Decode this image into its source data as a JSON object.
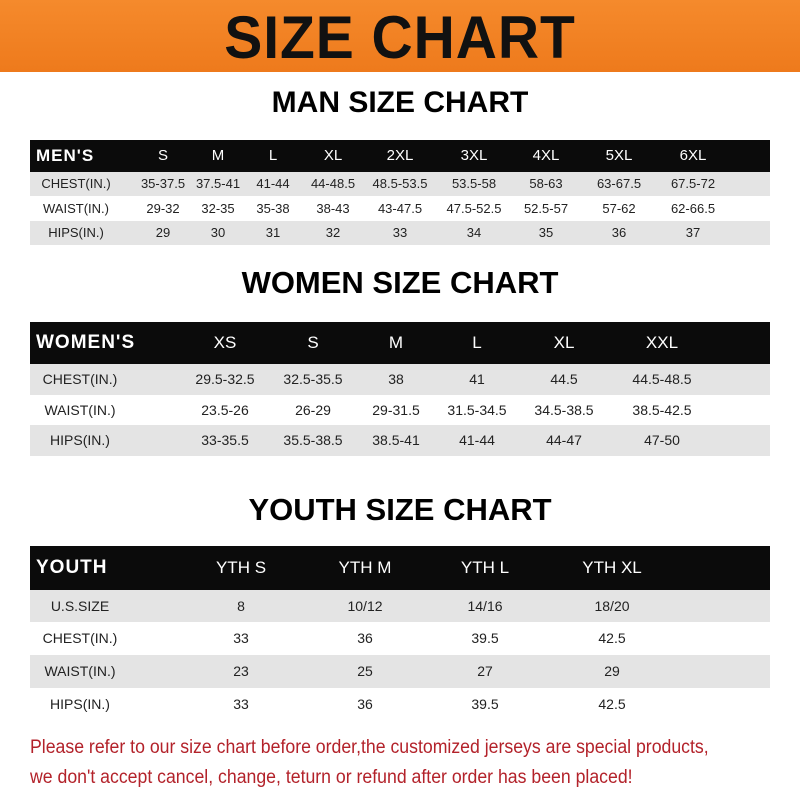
{
  "title": "SIZE CHART",
  "colors": {
    "banner": "#f0801f",
    "header_row": "#0b0b0b",
    "stripe": "#e4e4e4",
    "notice": "#b3222a"
  },
  "men": {
    "title": "MAN SIZE CHART",
    "header": [
      "MEN'S",
      "S",
      "M",
      "L",
      "XL",
      "2XL",
      "3XL",
      "4XL",
      "5XL",
      "6XL"
    ],
    "rows": [
      [
        "CHEST(IN.)",
        "35-37.5",
        "37.5-41",
        "41-44",
        "44-48.5",
        "48.5-53.5",
        "53.5-58",
        "58-63",
        "63-67.5",
        "67.5-72"
      ],
      [
        "WAIST(IN.)",
        "29-32",
        "32-35",
        "35-38",
        "38-43",
        "43-47.5",
        "47.5-52.5",
        "52.5-57",
        "57-62",
        "62-66.5"
      ],
      [
        "HIPS(IN.)",
        "29",
        "30",
        "31",
        "32",
        "33",
        "34",
        "35",
        "36",
        "37"
      ]
    ]
  },
  "women": {
    "title": "WOMEN SIZE CHART",
    "header": [
      "WOMEN'S",
      "XS",
      "S",
      "M",
      "L",
      "XL",
      "XXL"
    ],
    "rows": [
      [
        "CHEST(IN.)",
        "29.5-32.5",
        "32.5-35.5",
        "38",
        "41",
        "44.5",
        "44.5-48.5"
      ],
      [
        "WAIST(IN.)",
        "23.5-26",
        "26-29",
        "29-31.5",
        "31.5-34.5",
        "34.5-38.5",
        "38.5-42.5"
      ],
      [
        "HIPS(IN.)",
        "33-35.5",
        "35.5-38.5",
        "38.5-41",
        "41-44",
        "44-47",
        "47-50"
      ]
    ]
  },
  "youth": {
    "title": "YOUTH SIZE CHART",
    "header": [
      "YOUTH",
      "YTH S",
      "YTH M",
      "YTH L",
      "YTH XL"
    ],
    "rows": [
      [
        "U.S.SIZE",
        "8",
        "10/12",
        "14/16",
        "18/20"
      ],
      [
        "CHEST(IN.)",
        "33",
        "36",
        "39.5",
        "42.5"
      ],
      [
        "WAIST(IN.)",
        "23",
        "25",
        "27",
        "29"
      ],
      [
        "HIPS(IN.)",
        "33",
        "36",
        "39.5",
        "42.5"
      ]
    ]
  },
  "notice": {
    "line1": "Please refer to our size chart before order,the customized jerseys are special products,",
    "line2": "we don't accept cancel, change, teturn or refund after order has been placed!"
  }
}
